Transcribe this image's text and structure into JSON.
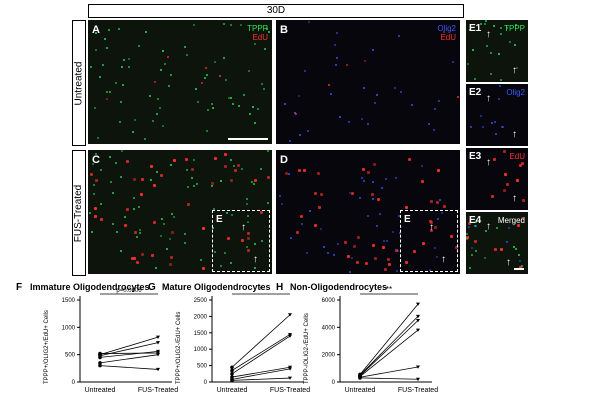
{
  "header": {
    "title": "30D"
  },
  "rows": [
    {
      "label": "Untreated"
    },
    {
      "label": "FUS-Treated"
    }
  ],
  "panels": {
    "A": {
      "label": "A",
      "channels": [
        "TPPP",
        "EdU"
      ]
    },
    "B": {
      "label": "B",
      "channels": [
        "Olig2",
        "EdU"
      ]
    },
    "C": {
      "label": "C"
    },
    "D": {
      "label": "D"
    },
    "E_inset": "E",
    "E1": {
      "label": "E1",
      "channel": "TPPP"
    },
    "E2": {
      "label": "E2",
      "channel": "Olig2"
    },
    "E3": {
      "label": "E3",
      "channel": "EdU"
    },
    "E4": {
      "label": "E4",
      "channel": "Merged"
    }
  },
  "colors": {
    "tppp": "#2ee85a",
    "edu": "#ff3030",
    "olig2": "#3a5cff"
  },
  "icons": [
    "arrow-up-icon"
  ],
  "chart_data": [
    {
      "type": "line",
      "panel": "F",
      "title": "Immature Oligodendrocytes",
      "ylabel": "TPPP+/OLIG2+/EdU+ Cells",
      "categories": [
        "Untreated",
        "FUS-Treated"
      ],
      "ylim": [
        0,
        1500
      ],
      "yticks": [
        0,
        500,
        1000,
        1500
      ],
      "series": [
        {
          "values": [
            500,
            820
          ]
        },
        {
          "values": [
            480,
            720
          ]
        },
        {
          "values": [
            450,
            560
          ]
        },
        {
          "values": [
            520,
            530
          ]
        },
        {
          "values": [
            350,
            500
          ]
        },
        {
          "values": [
            300,
            230
          ]
        }
      ],
      "significance": {
        "text": "p=0.0606"
      }
    },
    {
      "type": "line",
      "panel": "G",
      "title": "Mature Oligodendrocytes",
      "ylabel": "TPPP+/OLIG2-/EdU+ Cells",
      "categories": [
        "Untreated",
        "FUS-Treated"
      ],
      "ylim": [
        0,
        2500
      ],
      "yticks": [
        0,
        500,
        1000,
        1500,
        2000,
        2500
      ],
      "series": [
        {
          "values": [
            450,
            2050
          ]
        },
        {
          "values": [
            350,
            1450
          ]
        },
        {
          "values": [
            250,
            1400
          ]
        },
        {
          "values": [
            150,
            450
          ]
        },
        {
          "values": [
            80,
            400
          ]
        },
        {
          "values": [
            50,
            120
          ]
        }
      ],
      "significance": {
        "text": "*"
      }
    },
    {
      "type": "line",
      "panel": "H",
      "title": "Non-Oligodendrocytes",
      "ylabel": "TPPP-/OLIG2-/EdU+ Cells",
      "categories": [
        "Untreated",
        "FUS-Treated"
      ],
      "ylim": [
        0,
        6000
      ],
      "yticks": [
        0,
        2000,
        4000,
        6000
      ],
      "series": [
        {
          "values": [
            550,
            5700
          ]
        },
        {
          "values": [
            500,
            4800
          ]
        },
        {
          "values": [
            450,
            4500
          ]
        },
        {
          "values": [
            400,
            3800
          ]
        },
        {
          "values": [
            350,
            1100
          ]
        },
        {
          "values": [
            300,
            200
          ]
        }
      ],
      "significance": {
        "text": "**"
      }
    }
  ]
}
